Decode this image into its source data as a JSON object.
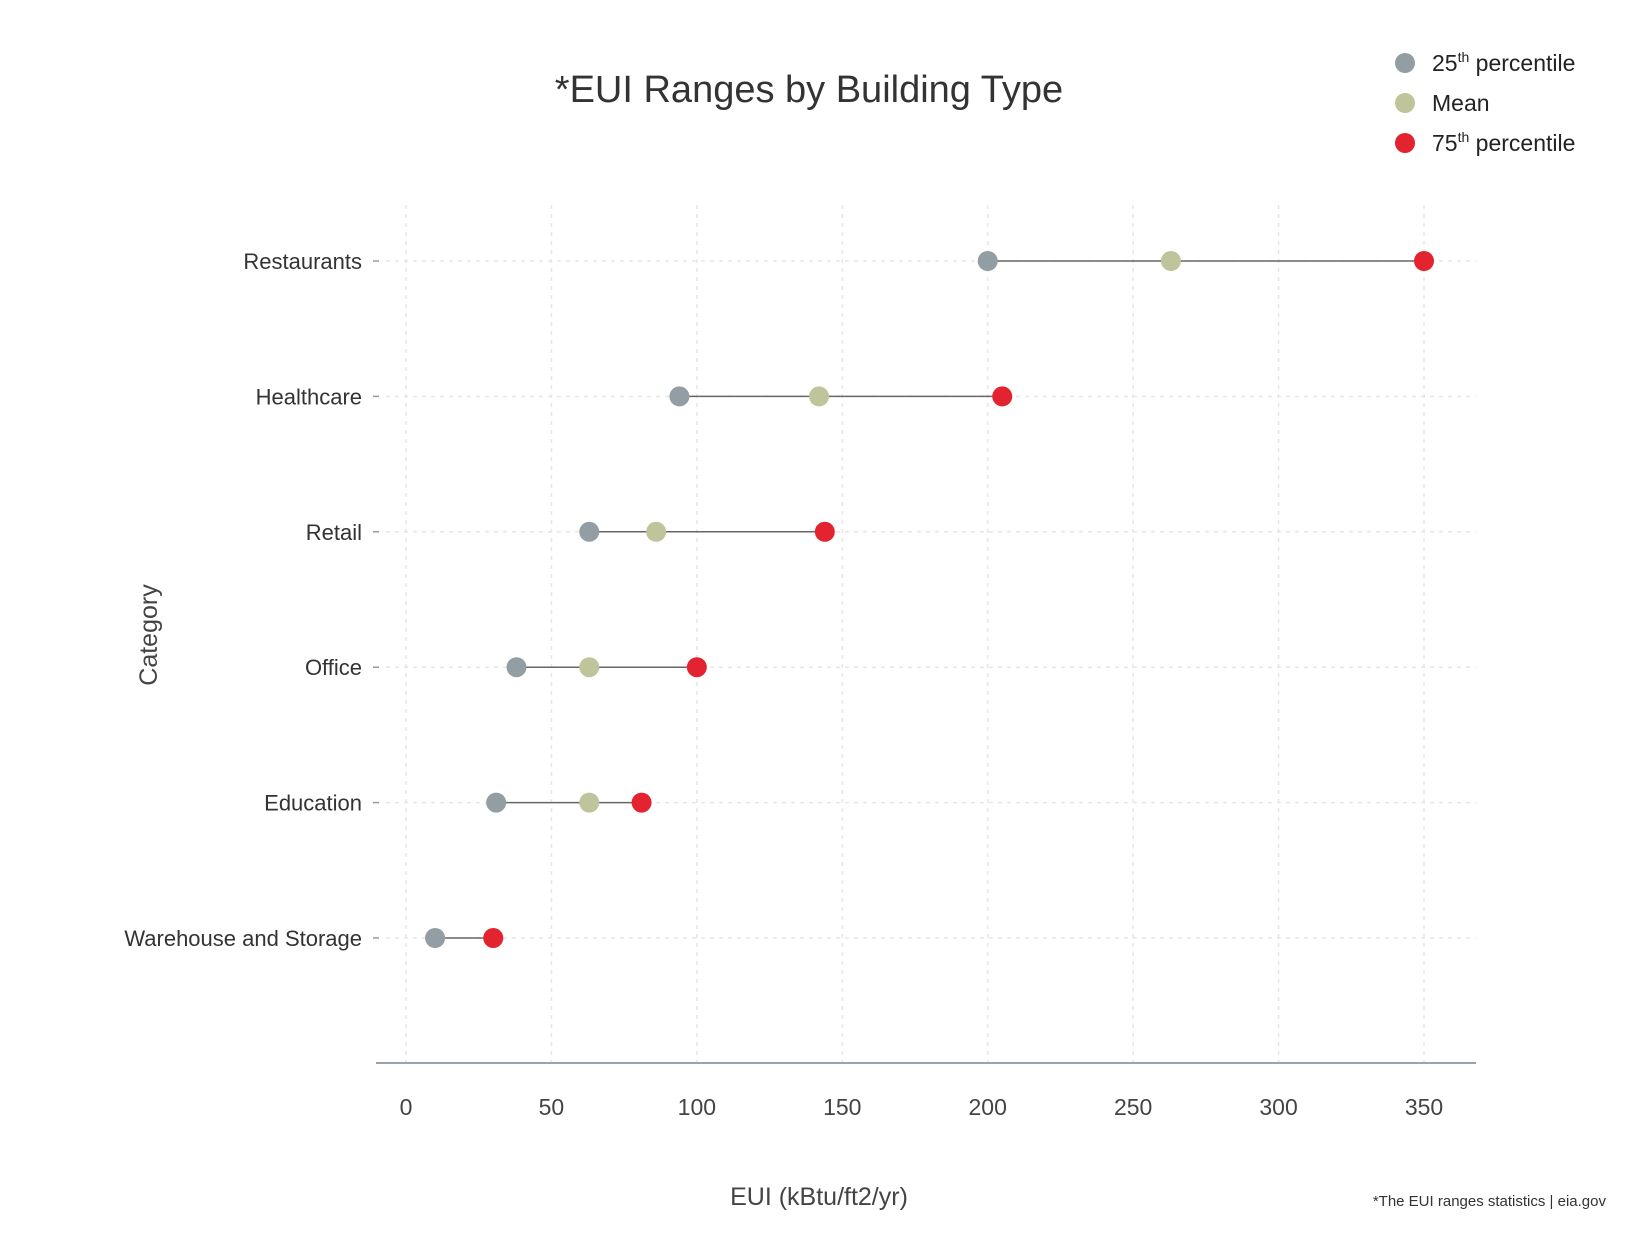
{
  "chart_data": {
    "type": "dumbbell",
    "title": "*EUI Ranges by Building Type",
    "xlabel": "EUI (kBtu/ft2/yr)",
    "ylabel": "Category",
    "xlim": [
      -10,
      368
    ],
    "xticks": [
      0,
      50,
      100,
      150,
      200,
      250,
      300,
      350
    ],
    "grid": true,
    "legend_position": "top-right",
    "categories": [
      "Restaurants",
      "Healthcare",
      "Retail",
      "Office",
      "Education",
      "Warehouse and Storage"
    ],
    "series": [
      {
        "name": "25th percentile",
        "color": "#939ea4",
        "values": [
          200,
          94,
          63,
          38,
          31,
          10
        ]
      },
      {
        "name": "Mean",
        "color": "#bfc49a",
        "values": [
          263,
          142,
          86,
          63,
          63,
          null
        ]
      },
      {
        "name": "75th percentile",
        "color": "#e3232f",
        "values": [
          350,
          205,
          144,
          100,
          81,
          30
        ]
      }
    ],
    "legend": [
      {
        "base": "25",
        "sup": "th",
        "rest": " percentile"
      },
      {
        "base": "Mean",
        "sup": "",
        "rest": ""
      },
      {
        "base": "75",
        "sup": "th",
        "rest": " percentile"
      }
    ],
    "source_note": "*The EUI ranges statistics | eia.gov"
  }
}
